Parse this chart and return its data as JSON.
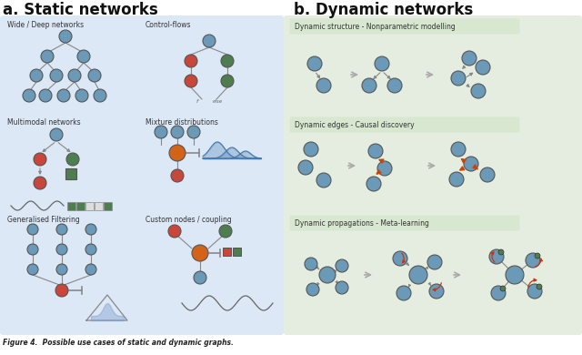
{
  "title_a": "a. Static networks",
  "title_b": "b. Dynamic networks",
  "bg_left": "#dce8f5",
  "bg_right": "#e5ede0",
  "node_blue": "#6b9ab8",
  "node_red": "#c9463a",
  "node_green": "#4e7e50",
  "node_orange": "#d4631a",
  "edge_color": "#888888",
  "caption": "Figure 4.  Possible use cases of static and dynamic graphs.",
  "label_left1": "Wide / Deep networks",
  "label_left2": "Multimodal networks",
  "label_left3": "Generalised Filtering",
  "label_right1": "Control-flows",
  "label_right2": "Mixture distributions",
  "label_right3": "Custom nodes / coupling",
  "dyn_label1": "Dynamic structure - Nonparametric modelling",
  "dyn_label2": "Dynamic edges - Causal discovery",
  "dyn_label3": "Dynamic propagations - Meta-learning"
}
